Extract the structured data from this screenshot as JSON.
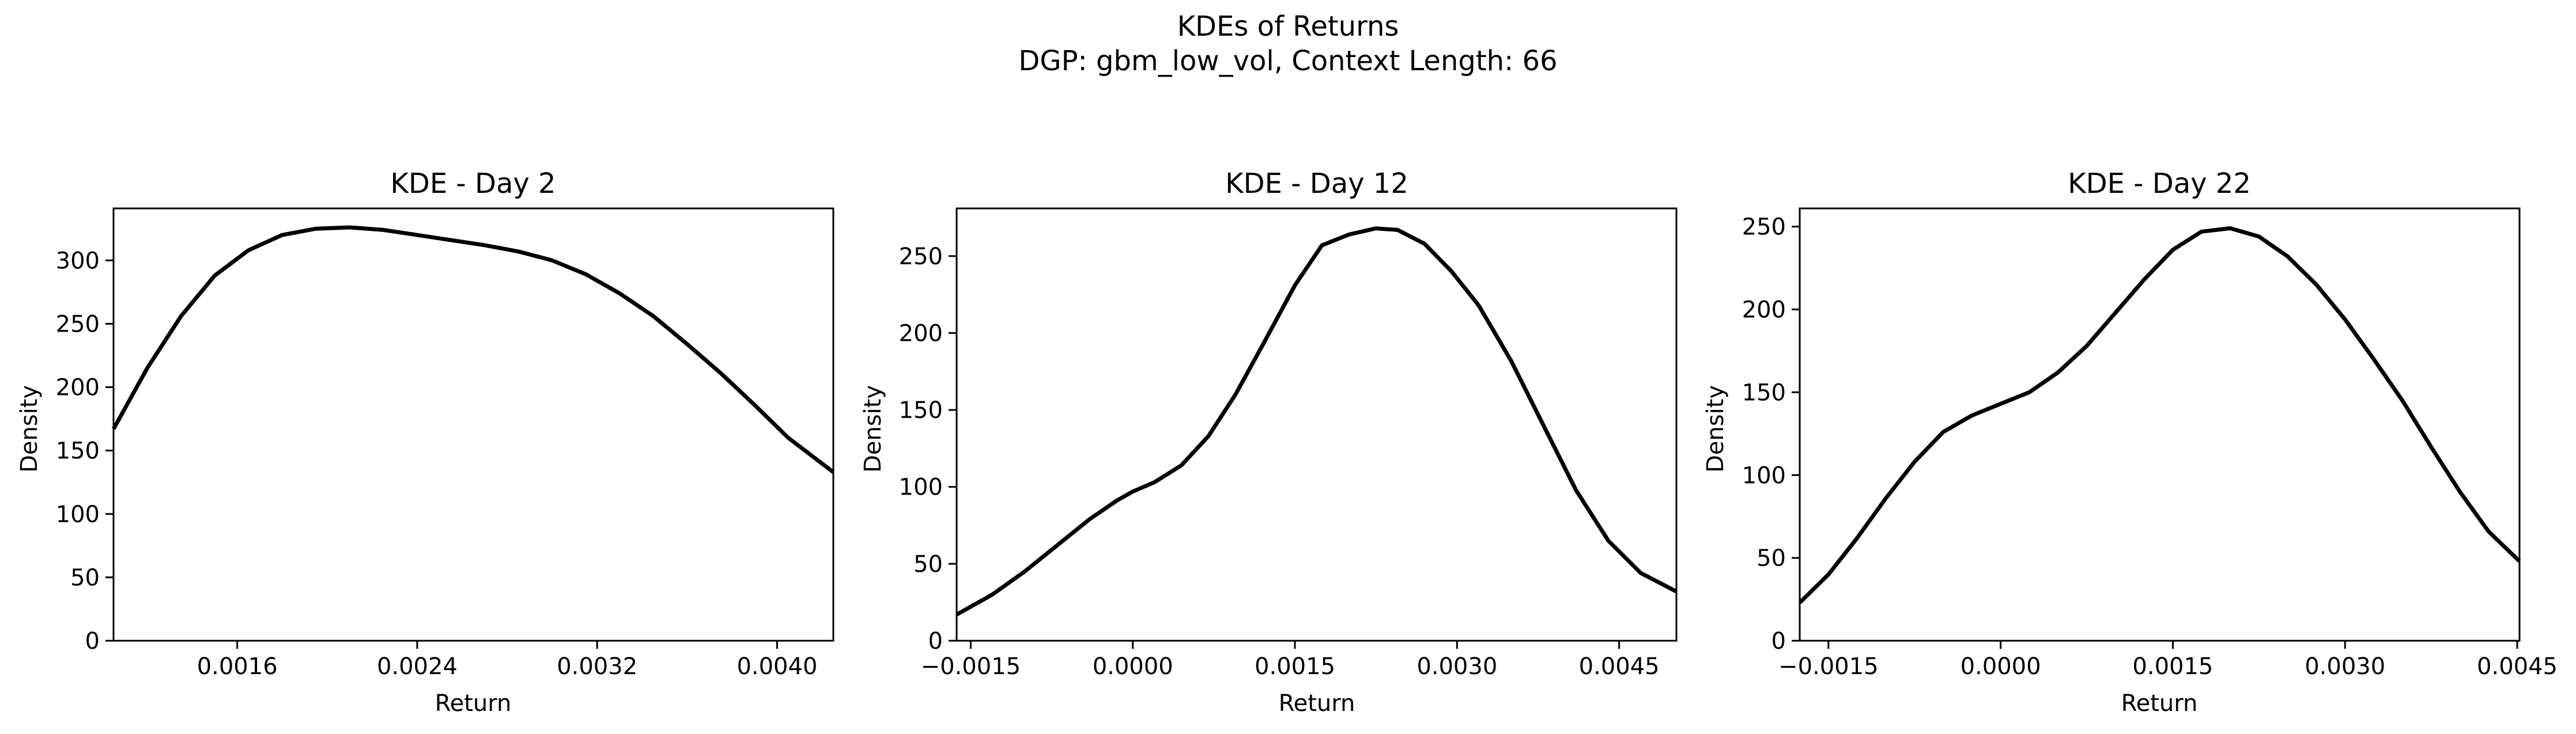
{
  "figure": {
    "title": "KDEs of Returns",
    "subtitle": "DGP: gbm_low_vol, Context Length: 66"
  },
  "chart_data": [
    {
      "type": "line",
      "title": "KDE - Day 2",
      "xlabel": "Return",
      "ylabel": "Density",
      "xlim": [
        0.00105,
        0.00425
      ],
      "ylim": [
        0,
        341
      ],
      "xticks": [
        0.0016,
        0.0024,
        0.0032,
        0.004
      ],
      "xtick_labels": [
        "0.0016",
        "0.0024",
        "0.0032",
        "0.0040"
      ],
      "yticks": [
        0,
        50,
        100,
        150,
        200,
        250,
        300
      ],
      "ytick_labels": [
        "0",
        "50",
        "100",
        "150",
        "200",
        "250",
        "300"
      ],
      "grid": false,
      "series": [
        {
          "color": "#000000",
          "x": [
            0.00105,
            0.0012,
            0.00135,
            0.0015,
            0.00165,
            0.0018,
            0.00195,
            0.0021,
            0.00225,
            0.0024,
            0.00255,
            0.0027,
            0.00285,
            0.003,
            0.00315,
            0.0033,
            0.00345,
            0.0036,
            0.00375,
            0.0039,
            0.00405,
            0.00425
          ],
          "y": [
            167,
            215,
            256,
            288,
            308,
            320,
            325,
            326,
            324,
            320,
            316,
            312,
            307,
            300,
            289,
            274,
            256,
            234,
            211,
            186,
            160,
            133
          ]
        }
      ]
    },
    {
      "type": "line",
      "title": "KDE - Day 12",
      "xlabel": "Return",
      "ylabel": "Density",
      "xlim": [
        -0.00163,
        0.00503
      ],
      "ylim": [
        0,
        281
      ],
      "xticks": [
        -0.0015,
        0.0,
        0.0015,
        0.003,
        0.0045
      ],
      "xtick_labels": [
        "−0.0015",
        "0.0000",
        "0.0015",
        "0.0030",
        "0.0045"
      ],
      "yticks": [
        0,
        50,
        100,
        150,
        200,
        250
      ],
      "ytick_labels": [
        "0",
        "50",
        "100",
        "150",
        "200",
        "250"
      ],
      "grid": false,
      "series": [
        {
          "color": "#000000",
          "x": [
            -0.00163,
            -0.0013,
            -0.001,
            -0.0007,
            -0.0004,
            -0.00015,
            0.0,
            0.0002,
            0.00045,
            0.0007,
            0.00095,
            0.0012,
            0.0015,
            0.00175,
            0.002,
            0.00225,
            0.00245,
            0.0027,
            0.00295,
            0.0032,
            0.0035,
            0.0038,
            0.0041,
            0.0044,
            0.0047,
            0.00503
          ],
          "y": [
            17,
            30,
            45,
            62,
            79,
            91,
            97,
            103,
            114,
            133,
            160,
            192,
            231,
            257,
            264,
            268,
            267,
            258,
            240,
            218,
            182,
            140,
            98,
            65,
            44,
            32
          ]
        }
      ]
    },
    {
      "type": "line",
      "title": "KDE - Day 22",
      "xlabel": "Return",
      "ylabel": "Density",
      "xlim": [
        -0.00175,
        0.00452
      ],
      "ylim": [
        0,
        261
      ],
      "xticks": [
        -0.0015,
        0.0,
        0.0015,
        0.003,
        0.0045
      ],
      "xtick_labels": [
        "−0.0015",
        "0.0000",
        "0.0015",
        "0.0030",
        "0.0045"
      ],
      "yticks": [
        0,
        50,
        100,
        150,
        200,
        250
      ],
      "ytick_labels": [
        "0",
        "50",
        "100",
        "150",
        "200",
        "250"
      ],
      "grid": false,
      "series": [
        {
          "color": "#000000",
          "x": [
            -0.00175,
            -0.0015,
            -0.00125,
            -0.001,
            -0.00075,
            -0.0005,
            -0.00025,
            0.0,
            0.00025,
            0.0005,
            0.00075,
            0.001,
            0.00125,
            0.0015,
            0.00175,
            0.002,
            0.00225,
            0.0025,
            0.00275,
            0.003,
            0.00325,
            0.0035,
            0.00375,
            0.004,
            0.00425,
            0.00452
          ],
          "y": [
            23,
            40,
            62,
            86,
            108,
            126,
            136,
            143,
            150,
            162,
            178,
            198,
            218,
            236,
            247,
            249,
            244,
            232,
            215,
            194,
            170,
            145,
            117,
            90,
            66,
            48
          ]
        }
      ]
    }
  ]
}
